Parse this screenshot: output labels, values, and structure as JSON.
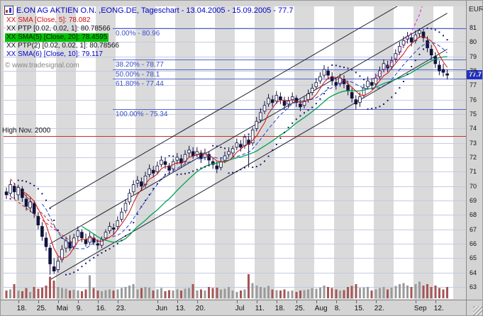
{
  "window": {
    "title": "E.ON AG AKTIEN O.N. ,EONG.DE, Tageschart - 13.04.2005 - 15.09.2005 - 77.7",
    "currency_label": "EUR",
    "copyright": "© www.tradesignal.com"
  },
  "legend": {
    "items": [
      {
        "id": "sma-5",
        "label": "XX SMA [Close, 5]: 78.082",
        "color": "#cc1111",
        "bg": ""
      },
      {
        "id": "ptp",
        "label": "XX PTP [0.02, 0.02, 1]: 80.78566",
        "color": "#111111",
        "bg": ""
      },
      {
        "id": "sma-20",
        "label": "XX SMA(5) [Close, 20]: 78.4595",
        "color": "#111111",
        "bg": "#00c400"
      },
      {
        "id": "ptp-2",
        "label": "XX PTP(2) [0.02, 0.02, 1]: 80.78566",
        "color": "#111111",
        "bg": ""
      },
      {
        "id": "sma-10",
        "label": "XX SMA(6) [Close, 10]: 79.117",
        "color": "#0000cc",
        "bg": ""
      }
    ]
  },
  "price_axis": {
    "ticks": [
      81,
      80,
      79,
      78,
      77,
      76,
      75,
      74,
      73,
      72,
      71,
      70,
      69,
      68,
      67,
      66,
      65,
      64,
      63
    ],
    "last_price": 77.7,
    "last_price_label": "77.7"
  },
  "time_axis": {
    "labels": [
      {
        "text": "18.",
        "bar": 3
      },
      {
        "text": "25.",
        "bar": 8
      },
      {
        "text": "Mai",
        "bar": 13
      },
      {
        "text": "9.",
        "bar": 18
      },
      {
        "text": "16.",
        "bar": 23
      },
      {
        "text": "23.",
        "bar": 28
      },
      {
        "text": "Jun",
        "bar": 38
      },
      {
        "text": "13.",
        "bar": 43
      },
      {
        "text": "20.",
        "bar": 48
      },
      {
        "text": "Jul",
        "bar": 58
      },
      {
        "text": "11.",
        "bar": 63
      },
      {
        "text": "18.",
        "bar": 68
      },
      {
        "text": "25.",
        "bar": 73
      },
      {
        "text": "Aug",
        "bar": 78
      },
      {
        "text": "8.",
        "bar": 83
      },
      {
        "text": "15.",
        "bar": 88
      },
      {
        "text": "22.",
        "bar": 93
      },
      {
        "text": "Sep",
        "bar": 103
      },
      {
        "text": "12.",
        "bar": 108
      }
    ]
  },
  "chart_data": {
    "type": "candlestick",
    "title": "E.ON AG AKTIEN O.N.",
    "symbol": "EONG.DE",
    "timeframe": "Tageschart",
    "date_range": "13.04.2005 - 15.09.2005",
    "last_close": 77.7,
    "y_unit": "EUR",
    "ylim": [
      63,
      81
    ],
    "grid": "horizontal lines at every 1 EUR",
    "candle_format": [
      "open",
      "high",
      "low",
      "close",
      "volume_rel"
    ],
    "candles": [
      [
        69.6,
        69.9,
        69.1,
        69.4,
        0.3
      ],
      [
        69.5,
        70.4,
        69.3,
        70.1,
        0.35
      ],
      [
        70.0,
        70.2,
        69.2,
        69.6,
        0.55
      ],
      [
        69.4,
        70.1,
        69.0,
        69.9,
        0.3
      ],
      [
        69.8,
        70.0,
        68.9,
        69.2,
        0.28
      ],
      [
        69.1,
        69.4,
        68.3,
        68.6,
        0.4
      ],
      [
        68.5,
        69.2,
        68.2,
        68.9,
        0.25
      ],
      [
        68.8,
        69.0,
        67.8,
        68.1,
        0.45
      ],
      [
        67.9,
        68.2,
        67.0,
        67.3,
        0.38
      ],
      [
        67.2,
        67.5,
        66.2,
        66.5,
        0.42
      ],
      [
        66.4,
        66.8,
        65.5,
        65.8,
        0.5
      ],
      [
        65.7,
        65.9,
        63.85,
        64.6,
        0.85
      ],
      [
        64.4,
        65.0,
        63.9,
        64.1,
        0.7
      ],
      [
        64.2,
        65.1,
        64.0,
        64.8,
        0.45
      ],
      [
        64.9,
        65.9,
        64.7,
        65.6,
        0.4
      ],
      [
        65.7,
        66.5,
        65.4,
        66.2,
        0.38
      ],
      [
        66.1,
        66.6,
        65.5,
        65.7,
        0.3
      ],
      [
        65.8,
        66.7,
        65.6,
        66.4,
        0.33
      ],
      [
        66.5,
        67.2,
        66.2,
        66.9,
        0.3
      ],
      [
        66.8,
        67.0,
        66.1,
        66.4,
        0.28
      ],
      [
        66.3,
        66.7,
        65.8,
        66.0,
        0.35
      ],
      [
        66.1,
        66.8,
        65.9,
        66.5,
        0.9
      ],
      [
        66.4,
        66.7,
        65.9,
        66.1,
        0.4
      ],
      [
        66.0,
        66.3,
        65.6,
        65.9,
        0.3
      ],
      [
        65.9,
        66.5,
        65.7,
        66.3,
        0.28
      ],
      [
        66.4,
        67.0,
        66.2,
        66.8,
        0.32
      ],
      [
        66.9,
        67.5,
        66.7,
        67.2,
        0.35
      ],
      [
        67.1,
        67.4,
        66.6,
        67.0,
        0.3
      ],
      [
        67.2,
        67.9,
        67.0,
        67.6,
        0.35
      ],
      [
        67.7,
        68.5,
        67.5,
        68.2,
        0.4
      ],
      [
        68.3,
        69.1,
        68.1,
        68.8,
        0.45
      ],
      [
        68.9,
        69.8,
        68.7,
        69.5,
        0.5
      ],
      [
        69.6,
        70.4,
        69.4,
        70.1,
        0.55
      ],
      [
        70.2,
        70.7,
        69.9,
        70.4,
        0.35
      ],
      [
        70.3,
        70.6,
        69.7,
        70.0,
        0.4
      ],
      [
        70.1,
        71.0,
        69.9,
        70.7,
        0.45
      ],
      [
        70.8,
        71.5,
        70.6,
        71.2,
        0.42
      ],
      [
        71.1,
        71.4,
        70.6,
        70.9,
        0.3
      ],
      [
        71.0,
        71.7,
        70.8,
        71.4,
        0.35
      ],
      [
        71.5,
        72.1,
        71.3,
        71.8,
        0.4
      ],
      [
        71.7,
        72.0,
        71.2,
        71.5,
        0.28
      ],
      [
        71.4,
        71.6,
        70.8,
        71.1,
        0.32
      ],
      [
        71.2,
        71.9,
        71.0,
        71.7,
        0.3
      ],
      [
        71.8,
        72.3,
        71.5,
        72.0,
        0.35
      ],
      [
        71.9,
        72.2,
        71.3,
        71.6,
        0.3
      ],
      [
        71.7,
        72.5,
        71.5,
        72.2,
        0.38
      ],
      [
        72.3,
        72.8,
        72.0,
        72.5,
        0.4
      ],
      [
        72.4,
        72.7,
        71.9,
        72.1,
        0.55
      ],
      [
        72.2,
        72.7,
        72.0,
        72.4,
        0.3
      ],
      [
        72.3,
        72.5,
        71.6,
        71.9,
        0.35
      ],
      [
        72.0,
        72.6,
        71.8,
        72.3,
        0.3
      ],
      [
        72.2,
        72.4,
        71.5,
        71.8,
        0.45
      ],
      [
        71.7,
        72.0,
        71.2,
        71.5,
        0.4
      ],
      [
        71.4,
        71.7,
        70.9,
        71.2,
        0.42
      ],
      [
        71.3,
        72.0,
        71.1,
        71.7,
        0.35
      ],
      [
        71.8,
        72.4,
        71.6,
        72.1,
        0.38
      ],
      [
        72.2,
        72.7,
        72.0,
        72.4,
        0.45
      ],
      [
        72.3,
        72.8,
        72.0,
        72.6,
        0.3
      ],
      [
        72.7,
        73.3,
        72.5,
        73.0,
        0.25
      ],
      [
        72.9,
        73.2,
        72.4,
        72.7,
        0.3
      ],
      [
        72.8,
        73.6,
        72.6,
        73.4,
        0.35
      ],
      [
        73.2,
        73.5,
        71.3,
        72.9,
        0.95
      ],
      [
        73.0,
        74.1,
        72.8,
        73.9,
        0.6
      ],
      [
        74.0,
        74.8,
        73.8,
        74.5,
        0.5
      ],
      [
        74.6,
        75.4,
        74.4,
        75.1,
        0.45
      ],
      [
        75.2,
        75.9,
        75.0,
        75.6,
        0.42
      ],
      [
        75.7,
        76.4,
        75.5,
        76.1,
        0.48
      ],
      [
        76.0,
        76.3,
        75.5,
        75.8,
        0.35
      ],
      [
        75.9,
        76.6,
        75.7,
        76.3,
        0.32
      ],
      [
        76.2,
        76.5,
        75.7,
        76.0,
        0.3
      ],
      [
        75.9,
        76.2,
        75.3,
        75.6,
        0.35
      ],
      [
        75.7,
        76.2,
        75.4,
        75.9,
        0.28
      ],
      [
        76.0,
        76.5,
        75.8,
        76.2,
        0.3
      ],
      [
        76.1,
        76.3,
        75.5,
        75.8,
        0.25
      ],
      [
        75.7,
        76.0,
        75.2,
        75.5,
        0.3
      ],
      [
        75.6,
        76.2,
        75.4,
        75.9,
        0.32
      ],
      [
        76.0,
        76.7,
        75.8,
        76.4,
        0.35
      ],
      [
        76.5,
        77.1,
        76.3,
        76.8,
        0.4
      ],
      [
        76.9,
        77.5,
        76.7,
        77.2,
        0.38
      ],
      [
        77.3,
        77.9,
        77.1,
        77.6,
        0.42
      ],
      [
        77.7,
        78.4,
        77.5,
        78.1,
        0.5
      ],
      [
        78.0,
        78.3,
        77.4,
        77.7,
        0.45
      ],
      [
        77.6,
        77.9,
        77.0,
        77.3,
        0.4
      ],
      [
        77.2,
        77.5,
        76.7,
        77.0,
        0.35
      ],
      [
        77.1,
        77.8,
        76.9,
        77.5,
        0.3
      ],
      [
        77.4,
        77.7,
        76.8,
        77.1,
        0.32
      ],
      [
        77.0,
        77.3,
        76.3,
        76.6,
        0.45
      ],
      [
        76.5,
        76.8,
        75.8,
        76.1,
        0.48
      ],
      [
        76.0,
        76.3,
        75.34,
        75.7,
        0.55
      ],
      [
        75.8,
        76.5,
        75.5,
        76.2,
        0.4
      ],
      [
        76.3,
        77.1,
        76.1,
        76.8,
        0.42
      ],
      [
        76.9,
        77.6,
        76.7,
        77.3,
        0.45
      ],
      [
        77.2,
        77.5,
        76.7,
        77.0,
        0.3
      ],
      [
        77.1,
        77.8,
        76.9,
        77.5,
        0.35
      ],
      [
        77.6,
        78.3,
        77.4,
        78.0,
        0.4
      ],
      [
        78.1,
        78.8,
        77.9,
        78.5,
        0.45
      ],
      [
        78.4,
        78.7,
        77.9,
        78.2,
        0.35
      ],
      [
        78.3,
        79.0,
        78.1,
        78.7,
        0.42
      ],
      [
        78.8,
        79.5,
        78.6,
        79.2,
        0.48
      ],
      [
        79.3,
        80.0,
        79.1,
        79.7,
        0.55
      ],
      [
        79.8,
        80.4,
        79.6,
        80.1,
        0.6
      ],
      [
        80.2,
        80.7,
        79.9,
        80.4,
        0.5
      ],
      [
        80.3,
        80.6,
        79.7,
        80.0,
        0.45
      ],
      [
        80.1,
        80.8,
        79.9,
        80.5,
        0.55
      ],
      [
        80.6,
        80.96,
        80.3,
        80.8,
        0.65
      ],
      [
        80.7,
        80.9,
        80.0,
        80.3,
        0.5
      ],
      [
        80.1,
        80.4,
        79.3,
        79.6,
        0.55
      ],
      [
        79.5,
        79.8,
        78.8,
        79.1,
        0.45
      ],
      [
        79.0,
        79.3,
        78.2,
        78.5,
        0.5
      ],
      [
        78.4,
        78.7,
        77.7,
        78.0,
        0.4
      ],
      [
        78.1,
        78.5,
        77.6,
        77.9,
        0.35
      ],
      [
        77.8,
        78.1,
        77.4,
        77.7,
        0.45
      ]
    ],
    "indicators": {
      "sma5": {
        "label": "SMA [Close, 5]",
        "period": 5,
        "last": 78.082,
        "color": "#cc1111"
      },
      "sma20": {
        "label": "SMA(5) [Close, 20]",
        "period": 20,
        "last": 78.4595,
        "color": "#00a050"
      },
      "sma10": {
        "label": "SMA(6) [Close, 10]",
        "period": 10,
        "last": 79.117,
        "color": "#2642cc"
      },
      "psar": {
        "label": "PTP [0.02, 0.02, 1]",
        "step": 0.02,
        "increment": 0.02,
        "last": 80.78566,
        "color": "#1a1a70"
      }
    },
    "fibonacci": [
      {
        "label": "0.00% - 80.96",
        "price": 80.96
      },
      {
        "label": "38.20% - 78.77",
        "price": 78.77
      },
      {
        "label": "50.00% - 78.1",
        "price": 78.1
      },
      {
        "label": "61.80% - 77.44",
        "price": 77.44
      },
      {
        "label": "100.00% - 75.34",
        "price": 75.34
      }
    ],
    "hline": {
      "label": "High Nov. 2000",
      "price": 73.5,
      "color": "#c03030"
    },
    "trend_channel": [
      [
        [
          11,
          63.5
        ],
        [
          111,
          79.5
        ]
      ],
      [
        [
          11,
          66.0
        ],
        [
          111,
          82.0
        ]
      ],
      [
        [
          11,
          68.5
        ],
        [
          111,
          84.5
        ]
      ]
    ],
    "red_trendlines": [
      [
        [
          0,
          69.5
        ],
        [
          18,
          65.8
        ]
      ],
      [
        [
          1,
          70.5
        ],
        [
          13,
          66.9
        ]
      ]
    ],
    "projection_curve": [
      [
        92,
        77.4
      ],
      [
        95,
        78.0
      ],
      [
        98,
        78.9
      ],
      [
        100,
        79.7
      ],
      [
        102,
        80.7
      ],
      [
        104,
        81.9
      ],
      [
        105,
        82.8
      ]
    ]
  }
}
